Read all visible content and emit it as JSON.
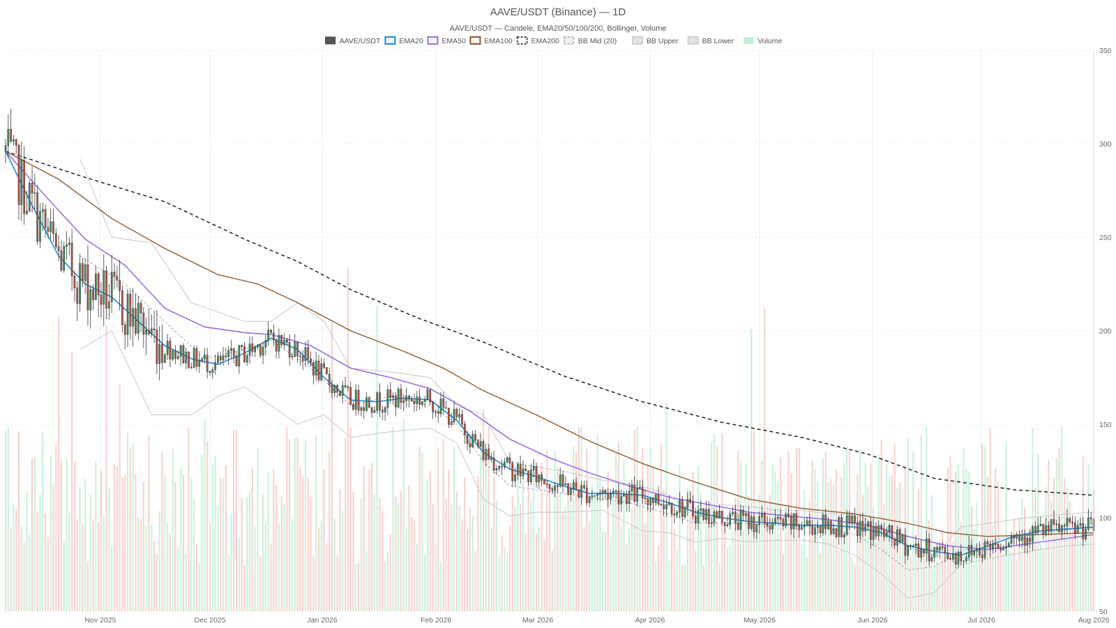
{
  "chart_data": {
    "type": "candlestick",
    "title": "AAVE/USDT (Binance) — 1D",
    "subtitle": "AAVE/USDT — Candele, EMA20/50/100/200, Bollinger, Volume",
    "legend": [
      {
        "label": "AAVE/USDT",
        "key": "candles",
        "color": "#555555",
        "style": "solid-fill"
      },
      {
        "label": "EMA20",
        "key": "ema20",
        "color": "#1f8ad6",
        "style": "line"
      },
      {
        "label": "EMA50",
        "key": "ema50",
        "color": "#9b6fe3",
        "style": "line"
      },
      {
        "label": "EMA100",
        "key": "ema100",
        "color": "#8c5a33",
        "style": "line"
      },
      {
        "label": "EMA200",
        "key": "ema200",
        "color": "#111111",
        "style": "dashed"
      },
      {
        "label": "BB Mid (20)",
        "key": "bbmid",
        "color": "#aaaaaa",
        "style": "dashed"
      },
      {
        "label": "BB Upper",
        "key": "bbupper",
        "color": "#bbbbbb",
        "style": "line"
      },
      {
        "label": "BB Lower",
        "key": "bblower",
        "color": "#bbbbbb",
        "style": "line"
      },
      {
        "label": "Volume",
        "key": "volume",
        "color": "#bfeed5",
        "style": "fill"
      }
    ],
    "legend_placement": "top-center",
    "x_ticks": [
      "Nov 2025",
      "Dec 2025",
      "Jan 2026",
      "Feb 2026",
      "Mar 2026",
      "Apr 2026",
      "May 2026",
      "Jun 2026",
      "Jul 2026",
      "Aug 2026"
    ],
    "y_ticks": [
      50,
      100,
      150,
      200,
      250,
      300,
      350
    ],
    "ylim": [
      50,
      350
    ],
    "y_axis_side": "right",
    "grid": true,
    "up_color": "#3e9b66",
    "down_color": "#c1584a",
    "ema20": [
      [
        0,
        296
      ],
      [
        10,
        267
      ],
      [
        20,
        240
      ],
      [
        30,
        225
      ],
      [
        40,
        218
      ],
      [
        50,
        205
      ],
      [
        60,
        192
      ],
      [
        70,
        185
      ],
      [
        80,
        182
      ],
      [
        90,
        188
      ],
      [
        100,
        196
      ],
      [
        110,
        190
      ],
      [
        120,
        175
      ],
      [
        130,
        163
      ],
      [
        140,
        162
      ],
      [
        150,
        164
      ],
      [
        160,
        163
      ],
      [
        170,
        152
      ],
      [
        180,
        135
      ],
      [
        190,
        126
      ],
      [
        200,
        122
      ],
      [
        210,
        117
      ],
      [
        220,
        113
      ],
      [
        230,
        113
      ],
      [
        240,
        112
      ],
      [
        250,
        108
      ],
      [
        260,
        103
      ],
      [
        270,
        100
      ],
      [
        280,
        98
      ],
      [
        290,
        97
      ],
      [
        300,
        96
      ],
      [
        310,
        96
      ],
      [
        320,
        95
      ],
      [
        330,
        92
      ],
      [
        340,
        85
      ],
      [
        350,
        82
      ],
      [
        360,
        80
      ],
      [
        370,
        85
      ],
      [
        380,
        90
      ],
      [
        390,
        93
      ],
      [
        400,
        94
      ],
      [
        410,
        95
      ]
    ],
    "ema50": [
      [
        0,
        296
      ],
      [
        15,
        272
      ],
      [
        30,
        249
      ],
      [
        45,
        235
      ],
      [
        60,
        212
      ],
      [
        75,
        202
      ],
      [
        90,
        199
      ],
      [
        100,
        198
      ],
      [
        115,
        192
      ],
      [
        130,
        180
      ],
      [
        145,
        175
      ],
      [
        160,
        169
      ],
      [
        175,
        157
      ],
      [
        190,
        142
      ],
      [
        205,
        132
      ],
      [
        220,
        124
      ],
      [
        235,
        117
      ],
      [
        250,
        111
      ],
      [
        265,
        107
      ],
      [
        280,
        103
      ],
      [
        295,
        101
      ],
      [
        310,
        99
      ],
      [
        325,
        96
      ],
      [
        340,
        90
      ],
      [
        355,
        85
      ],
      [
        370,
        83
      ],
      [
        385,
        86
      ],
      [
        400,
        89
      ],
      [
        410,
        91
      ]
    ],
    "ema100": [
      [
        0,
        296
      ],
      [
        20,
        281
      ],
      [
        40,
        260
      ],
      [
        60,
        244
      ],
      [
        80,
        230
      ],
      [
        95,
        225
      ],
      [
        110,
        215
      ],
      [
        130,
        200
      ],
      [
        150,
        189
      ],
      [
        165,
        180
      ],
      [
        180,
        168
      ],
      [
        200,
        155
      ],
      [
        220,
        141
      ],
      [
        240,
        129
      ],
      [
        260,
        119
      ],
      [
        280,
        110
      ],
      [
        300,
        105
      ],
      [
        320,
        102
      ],
      [
        340,
        97
      ],
      [
        355,
        92
      ],
      [
        370,
        90
      ],
      [
        390,
        91
      ],
      [
        410,
        92
      ]
    ],
    "ema200": [
      [
        0,
        296
      ],
      [
        30,
        282
      ],
      [
        60,
        269
      ],
      [
        90,
        249
      ],
      [
        110,
        237
      ],
      [
        130,
        222
      ],
      [
        155,
        207
      ],
      [
        180,
        194
      ],
      [
        210,
        176
      ],
      [
        240,
        162
      ],
      [
        270,
        151
      ],
      [
        300,
        143
      ],
      [
        325,
        134
      ],
      [
        350,
        121
      ],
      [
        380,
        115
      ],
      [
        410,
        112
      ]
    ],
    "bbupper": [
      [
        28,
        292
      ],
      [
        40,
        250
      ],
      [
        55,
        247
      ],
      [
        70,
        215
      ],
      [
        80,
        210
      ],
      [
        90,
        205
      ],
      [
        100,
        205
      ],
      [
        110,
        215
      ],
      [
        120,
        205
      ],
      [
        130,
        180
      ],
      [
        145,
        178
      ],
      [
        160,
        175
      ],
      [
        170,
        160
      ],
      [
        180,
        155
      ],
      [
        190,
        130
      ],
      [
        200,
        127
      ],
      [
        210,
        125
      ],
      [
        225,
        120
      ],
      [
        240,
        117
      ],
      [
        250,
        112
      ],
      [
        260,
        102
      ],
      [
        270,
        107
      ],
      [
        280,
        106
      ],
      [
        290,
        104
      ],
      [
        300,
        104
      ],
      [
        310,
        102
      ],
      [
        320,
        102
      ],
      [
        330,
        95
      ],
      [
        340,
        84
      ],
      [
        350,
        80
      ],
      [
        360,
        95
      ],
      [
        370,
        97
      ],
      [
        385,
        100
      ],
      [
        400,
        102
      ],
      [
        410,
        103
      ]
    ],
    "bblower": [
      [
        28,
        190
      ],
      [
        40,
        200
      ],
      [
        55,
        155
      ],
      [
        70,
        155
      ],
      [
        80,
        165
      ],
      [
        90,
        170
      ],
      [
        100,
        160
      ],
      [
        110,
        150
      ],
      [
        120,
        155
      ],
      [
        130,
        143
      ],
      [
        145,
        146
      ],
      [
        160,
        148
      ],
      [
        170,
        140
      ],
      [
        180,
        110
      ],
      [
        190,
        101
      ],
      [
        200,
        103
      ],
      [
        210,
        103
      ],
      [
        225,
        104
      ],
      [
        240,
        93
      ],
      [
        250,
        92
      ],
      [
        260,
        87
      ],
      [
        270,
        89
      ],
      [
        280,
        87
      ],
      [
        290,
        88
      ],
      [
        300,
        88
      ],
      [
        310,
        86
      ],
      [
        320,
        80
      ],
      [
        330,
        70
      ],
      [
        340,
        57
      ],
      [
        350,
        60
      ],
      [
        360,
        75
      ],
      [
        370,
        78
      ],
      [
        385,
        82
      ],
      [
        400,
        85
      ],
      [
        410,
        86
      ]
    ],
    "bbmid": [
      [
        28,
        240
      ],
      [
        45,
        225
      ],
      [
        60,
        205
      ],
      [
        75,
        185
      ],
      [
        90,
        190
      ],
      [
        100,
        195
      ],
      [
        115,
        180
      ],
      [
        130,
        160
      ],
      [
        145,
        165
      ],
      [
        160,
        160
      ],
      [
        170,
        150
      ],
      [
        180,
        130
      ],
      [
        190,
        117
      ],
      [
        205,
        114
      ],
      [
        220,
        111
      ],
      [
        235,
        108
      ],
      [
        250,
        102
      ],
      [
        260,
        97
      ],
      [
        275,
        97
      ],
      [
        290,
        96
      ],
      [
        305,
        96
      ],
      [
        320,
        91
      ],
      [
        330,
        83
      ],
      [
        340,
        72
      ],
      [
        350,
        74
      ],
      [
        360,
        82
      ],
      [
        375,
        89
      ],
      [
        390,
        92
      ],
      [
        410,
        95
      ]
    ],
    "volume_ylim": [
      0,
      300
    ]
  }
}
